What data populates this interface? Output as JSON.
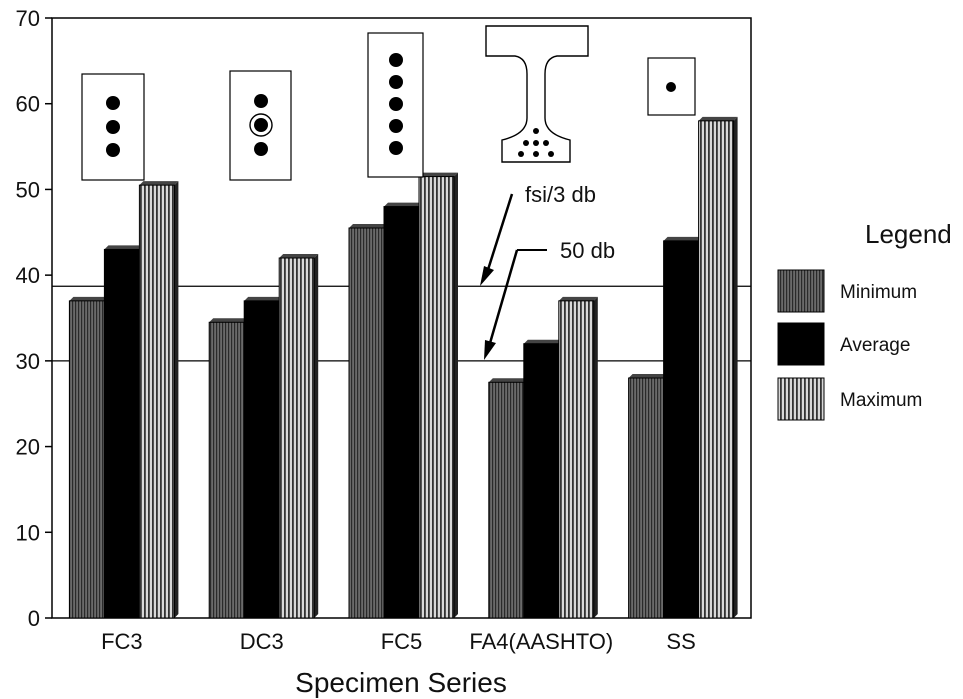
{
  "chart_data": {
    "type": "bar",
    "title": "",
    "xlabel": "Specimen Series",
    "ylabel": "",
    "ylim": [
      0,
      70
    ],
    "yticks": [
      0,
      10,
      20,
      30,
      40,
      50,
      60,
      70
    ],
    "grid": false,
    "categories": [
      "FC3",
      "DC3",
      "FC5",
      "FA4(AASHTO)",
      "SS"
    ],
    "series": [
      {
        "name": "Minimum",
        "values": [
          37,
          34.5,
          45.5,
          27.5,
          28
        ],
        "color": "#555555",
        "pattern": "dense-vertical-dark"
      },
      {
        "name": "Average",
        "values": [
          43,
          37,
          48,
          32,
          44
        ],
        "color": "#000000",
        "pattern": "solid"
      },
      {
        "name": "Maximum",
        "values": [
          50.5,
          42,
          51.5,
          37,
          58
        ],
        "color": "#888888",
        "pattern": "vertical-stripes"
      }
    ],
    "reference_lines": [
      {
        "label": "fsi/3 db",
        "value": 38.7
      },
      {
        "label": "50 db",
        "value": 30
      }
    ],
    "legend": {
      "title": "Legend",
      "position": "right"
    }
  }
}
